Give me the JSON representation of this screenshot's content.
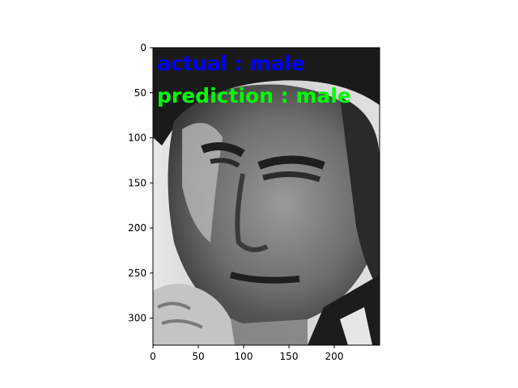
{
  "image": {
    "subject": "grayscale face photo",
    "width": 250,
    "height": 330
  },
  "overlay": {
    "actual_text": "actual : male",
    "actual_color": "#0000ff",
    "prediction_text": "prediction : male",
    "prediction_color": "#00ff00"
  },
  "axes": {
    "x_ticks": [
      0,
      50,
      100,
      150,
      200
    ],
    "y_ticks": [
      0,
      50,
      100,
      150,
      200,
      250,
      300
    ],
    "xlim": [
      0,
      250
    ],
    "ylim": [
      330,
      0
    ]
  }
}
